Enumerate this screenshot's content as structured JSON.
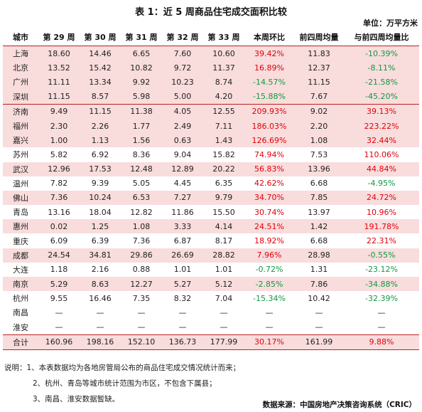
{
  "title": "表 1：近 5 周商品住宅成交面积比较",
  "unit": "单位：万平方米",
  "headers": [
    "城市",
    "第 29 周",
    "第 30 周",
    "第 31 周",
    "第 32 周",
    "第 33 周",
    "本周环比",
    "前四周均量",
    "与前四周均量比"
  ],
  "rows": [
    {
      "city": "上海",
      "w29": "18.60",
      "w30": "14.46",
      "w31": "6.65",
      "w32": "7.60",
      "w33": "10.60",
      "wow": "39.42%",
      "avg4": "11.83",
      "vsavg": "-10.39%"
    },
    {
      "city": "北京",
      "w29": "13.52",
      "w30": "15.42",
      "w31": "10.82",
      "w32": "9.72",
      "w33": "11.37",
      "wow": "16.89%",
      "avg4": "12.37",
      "vsavg": "-8.11%"
    },
    {
      "city": "广州",
      "w29": "11.11",
      "w30": "13.34",
      "w31": "9.92",
      "w32": "10.23",
      "w33": "8.74",
      "wow": "-14.57%",
      "avg4": "11.15",
      "vsavg": "-21.58%"
    },
    {
      "city": "深圳",
      "w29": "11.15",
      "w30": "8.57",
      "w31": "5.98",
      "w32": "5.00",
      "w33": "4.20",
      "wow": "-15.88%",
      "avg4": "7.67",
      "vsavg": "-45.20%"
    },
    {
      "city": "济南",
      "w29": "9.49",
      "w30": "11.15",
      "w31": "11.38",
      "w32": "4.05",
      "w33": "12.55",
      "wow": "209.93%",
      "avg4": "9.02",
      "vsavg": "39.13%"
    },
    {
      "city": "福州",
      "w29": "2.30",
      "w30": "2.26",
      "w31": "1.77",
      "w32": "2.49",
      "w33": "7.11",
      "wow": "186.03%",
      "avg4": "2.20",
      "vsavg": "223.22%"
    },
    {
      "city": "嘉兴",
      "w29": "1.00",
      "w30": "1.13",
      "w31": "1.56",
      "w32": "0.63",
      "w33": "1.43",
      "wow": "126.69%",
      "avg4": "1.08",
      "vsavg": "32.44%"
    },
    {
      "city": "苏州",
      "w29": "5.82",
      "w30": "6.92",
      "w31": "8.36",
      "w32": "9.04",
      "w33": "15.82",
      "wow": "74.94%",
      "avg4": "7.53",
      "vsavg": "110.06%"
    },
    {
      "city": "武汉",
      "w29": "12.96",
      "w30": "17.53",
      "w31": "12.48",
      "w32": "12.89",
      "w33": "20.22",
      "wow": "56.83%",
      "avg4": "13.96",
      "vsavg": "44.84%"
    },
    {
      "city": "温州",
      "w29": "7.82",
      "w30": "9.39",
      "w31": "5.05",
      "w32": "4.45",
      "w33": "6.35",
      "wow": "42.62%",
      "avg4": "6.68",
      "vsavg": "-4.95%"
    },
    {
      "city": "佛山",
      "w29": "7.36",
      "w30": "10.24",
      "w31": "6.53",
      "w32": "7.27",
      "w33": "9.79",
      "wow": "34.70%",
      "avg4": "7.85",
      "vsavg": "24.72%"
    },
    {
      "city": "青岛",
      "w29": "13.16",
      "w30": "18.04",
      "w31": "12.82",
      "w32": "11.86",
      "w33": "15.50",
      "wow": "30.74%",
      "avg4": "13.97",
      "vsavg": "10.96%"
    },
    {
      "city": "惠州",
      "w29": "0.02",
      "w30": "1.25",
      "w31": "1.08",
      "w32": "3.33",
      "w33": "4.14",
      "wow": "24.51%",
      "avg4": "1.42",
      "vsavg": "191.78%"
    },
    {
      "city": "重庆",
      "w29": "6.09",
      "w30": "6.39",
      "w31": "7.36",
      "w32": "6.87",
      "w33": "8.17",
      "wow": "18.92%",
      "avg4": "6.68",
      "vsavg": "22.31%"
    },
    {
      "city": "成都",
      "w29": "24.54",
      "w30": "34.81",
      "w31": "29.86",
      "w32": "26.69",
      "w33": "28.82",
      "wow": "7.96%",
      "avg4": "28.98",
      "vsavg": "-0.55%"
    },
    {
      "city": "大连",
      "w29": "1.18",
      "w30": "2.16",
      "w31": "0.88",
      "w32": "1.01",
      "w33": "1.01",
      "wow": "-0.72%",
      "avg4": "1.31",
      "vsavg": "-23.12%"
    },
    {
      "city": "南京",
      "w29": "5.29",
      "w30": "8.63",
      "w31": "12.27",
      "w32": "5.27",
      "w33": "5.12",
      "wow": "-2.85%",
      "avg4": "7.86",
      "vsavg": "-34.88%"
    },
    {
      "city": "杭州",
      "w29": "9.55",
      "w30": "16.46",
      "w31": "7.35",
      "w32": "8.32",
      "w33": "7.04",
      "wow": "-15.34%",
      "avg4": "10.42",
      "vsavg": "-32.39%"
    },
    {
      "city": "南昌",
      "w29": "—",
      "w30": "—",
      "w31": "—",
      "w32": "—",
      "w33": "—",
      "wow": "—",
      "avg4": "—",
      "vsavg": "—"
    },
    {
      "city": "淮安",
      "w29": "—",
      "w30": "—",
      "w31": "—",
      "w32": "—",
      "w33": "—",
      "wow": "—",
      "avg4": "—",
      "vsavg": "—"
    }
  ],
  "total": {
    "city": "合计",
    "w29": "160.96",
    "w30": "198.16",
    "w31": "152.10",
    "w32": "136.73",
    "w33": "177.99",
    "wow": "30.17%",
    "avg4": "161.99",
    "vsavg": "9.88%"
  },
  "notes": [
    "说明：1、本表数据均为各地房管局公布的商品住宅成交情况统计而来；",
    "2、杭州、青岛等城市统计范围为市区，不包含下属县；",
    "3、南昌、淮安数据暂缺。"
  ],
  "source": "数据来源：中国房地产决策咨询系统（CRIC）",
  "colors": {
    "positive": "#e0000a",
    "negative": "#119944",
    "highlight_row": "#f9dcdc",
    "rule": "#bb2222"
  }
}
